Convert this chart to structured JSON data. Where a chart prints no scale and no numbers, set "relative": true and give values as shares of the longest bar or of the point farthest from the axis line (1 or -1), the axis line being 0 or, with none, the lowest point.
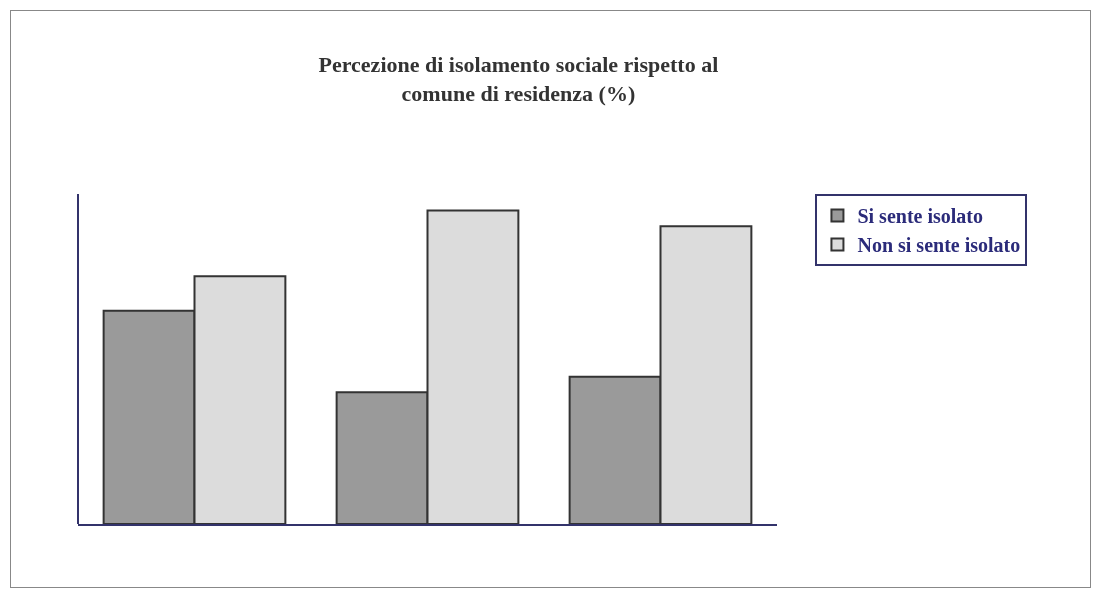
{
  "chart_data": {
    "type": "bar",
    "title": "Percezione di isolamento sociale rispetto al comune di residenza (%)",
    "categories": [
      null,
      null,
      null
    ],
    "relative": true,
    "legend": "right",
    "series": [
      {
        "name": "Si sente isolato",
        "color": "#9a9a9a",
        "values": [
          0.68,
          0.42,
          0.47
        ]
      },
      {
        "name": "Non si sente isolato",
        "color": "#dcdcdc",
        "values": [
          0.79,
          1,
          0.95
        ]
      }
    ]
  }
}
